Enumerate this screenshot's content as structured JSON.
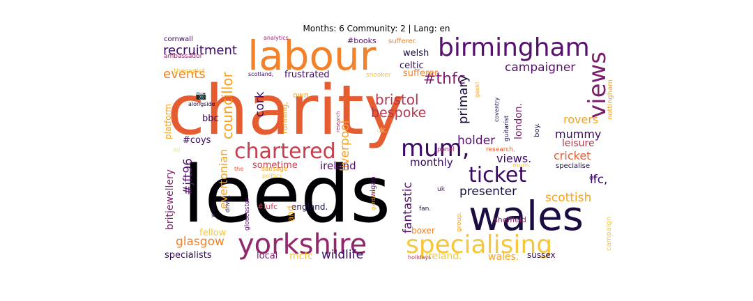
{
  "title": "Months: 6 Community: 2 | Lang: en",
  "palette": {
    "black": "#000004",
    "navy": "#1b0c41",
    "indigo": "#3a0963",
    "purple": "#56116e",
    "plum": "#7a1d6d",
    "magenta": "#93276b",
    "crimson": "#b5364c",
    "red": "#c73e4c",
    "vermilion": "#e55c30",
    "orange": "#f2812a",
    "amber": "#f7a21f",
    "gold": "#f6c63c",
    "pale": "#f1e47a"
  },
  "words": [
    {
      "text": "leeds",
      "color": "black"
    },
    {
      "text": "charity",
      "color": "vermilion"
    },
    {
      "text": "labour",
      "color": "orange"
    },
    {
      "text": "wales",
      "color": "navy"
    },
    {
      "text": "birmingham",
      "color": "purple"
    },
    {
      "text": "yorkshire",
      "color": "magenta"
    },
    {
      "text": "specialising",
      "color": "gold"
    },
    {
      "text": "chartered",
      "color": "red"
    },
    {
      "text": "mum,",
      "color": "indigo"
    },
    {
      "text": "ticket",
      "color": "indigo"
    },
    {
      "text": "views",
      "color": "plum"
    },
    {
      "text": "recruitment",
      "color": "indigo"
    },
    {
      "text": "events",
      "color": "orange"
    },
    {
      "text": "#thfc",
      "color": "plum"
    },
    {
      "text": "campaigner",
      "color": "purple"
    },
    {
      "text": "bristol",
      "color": "crimson"
    },
    {
      "text": "bespoke",
      "color": "crimson"
    },
    {
      "text": "councillor",
      "color": "amber"
    },
    {
      "text": "cork",
      "color": "indigo"
    },
    {
      "text": "liverpool",
      "color": "amber"
    },
    {
      "text": "primary",
      "color": "navy"
    },
    {
      "text": "london.",
      "color": "plum"
    },
    {
      "text": "rovers",
      "color": "amber"
    },
    {
      "text": "mummy",
      "color": "indigo"
    },
    {
      "text": "leisure",
      "color": "crimson"
    },
    {
      "text": "cricket",
      "color": "vermilion"
    },
    {
      "text": "lfc,",
      "color": "indigo"
    },
    {
      "text": "holder",
      "color": "purple"
    },
    {
      "text": "views.",
      "color": "indigo"
    },
    {
      "text": "monthly",
      "color": "indigo"
    },
    {
      "text": "fantastic",
      "color": "purple"
    },
    {
      "text": "ireland",
      "color": "purple"
    },
    {
      "text": "sometime",
      "color": "red"
    },
    {
      "text": "presenter",
      "color": "navy"
    },
    {
      "text": "scottish",
      "color": "amber"
    },
    {
      "text": "britjewellery",
      "color": "plum"
    },
    {
      "text": "#jft96",
      "color": "purple"
    },
    {
      "text": "evertonian",
      "color": "amber"
    },
    {
      "text": "#coys",
      "color": "indigo"
    },
    {
      "text": "bbc",
      "color": "indigo"
    },
    {
      "text": "glasgow",
      "color": "orange"
    },
    {
      "text": "fellow",
      "color": "gold"
    },
    {
      "text": "specialists",
      "color": "indigo"
    },
    {
      "text": "local",
      "color": "plum"
    },
    {
      "text": "mcfc",
      "color": "gold"
    },
    {
      "text": "wildlife",
      "color": "indigo"
    },
    {
      "text": "ireland.",
      "color": "gold"
    },
    {
      "text": "wales.",
      "color": "amber"
    },
    {
      "text": "sussex",
      "color": "indigo"
    },
    {
      "text": "boxer",
      "color": "orange"
    },
    {
      "text": "england.",
      "color": "navy"
    },
    {
      "text": "and",
      "color": "amber"
    },
    {
      "text": "#lufc",
      "color": "red"
    },
    {
      "text": "sheffield",
      "color": "magenta"
    },
    {
      "text": "campaign",
      "color": "gold"
    },
    {
      "text": "platform",
      "color": "amber"
    },
    {
      "text": "cornwall",
      "color": "indigo"
    },
    {
      "text": "therapist.",
      "color": "gold"
    },
    {
      "text": "ambassador",
      "color": "magenta"
    },
    {
      "text": "analytics",
      "color": "magenta"
    },
    {
      "text": "#books",
      "color": "purple"
    },
    {
      "text": "sufferer.",
      "color": "orange"
    },
    {
      "text": "welsh",
      "color": "navy"
    },
    {
      "text": "celtic",
      "color": "indigo"
    },
    {
      "text": "sufferer",
      "color": "orange"
    },
    {
      "text": "frustrated",
      "color": "indigo"
    },
    {
      "text": "scotland,",
      "color": "indigo"
    },
    {
      "text": "snooker",
      "color": "gold"
    },
    {
      "text": "running,",
      "color": "amber"
    },
    {
      "text": "own.",
      "color": "amber"
    },
    {
      "text": "nottingham",
      "color": "amber"
    },
    {
      "text": "alongside",
      "color": "navy"
    },
    {
      "text": "sausage",
      "color": "amber"
    },
    {
      "text": "politics",
      "color": "gold"
    },
    {
      "text": "research",
      "color": "magenta"
    },
    {
      "text": "wigan",
      "color": "purple"
    },
    {
      "text": "guitarist",
      "color": "navy"
    },
    {
      "text": "coventry",
      "color": "navy"
    },
    {
      "text": "geek!",
      "color": "amber"
    },
    {
      "text": "panel",
      "color": "magenta"
    },
    {
      "text": "boy.",
      "color": "navy"
    },
    {
      "text": "research,",
      "color": "vermilion"
    },
    {
      "text": "specialise",
      "color": "navy"
    },
    {
      "text": "mum.",
      "color": "gold"
    },
    {
      "text": "gloucester",
      "color": "purple"
    },
    {
      "text": "driver.",
      "color": "navy"
    },
    {
      "text": "wales.",
      "color": "navy"
    },
    {
      "text": "garden.",
      "color": "amber"
    },
    {
      "text": "uk",
      "color": "purple"
    },
    {
      "text": "group.",
      "color": "amber"
    },
    {
      "text": "fan.",
      "color": "navy"
    },
    {
      "text": "holidays",
      "color": "crimson"
    },
    {
      "text": "the",
      "color": "vermilion"
    },
    {
      "text": "uk.",
      "color": "pale"
    },
    {
      "text": "ltd",
      "color": "pale"
    },
    {
      "text": "of",
      "color": "purple"
    },
    {
      "text": "📷",
      "color": "vermilion"
    }
  ]
}
